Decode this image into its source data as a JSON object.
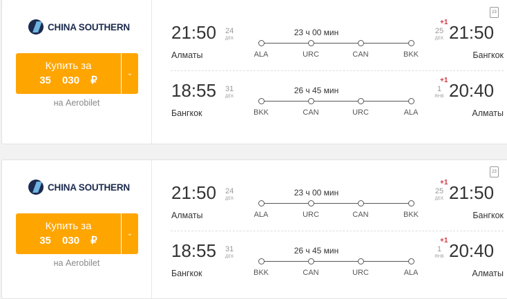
{
  "offers": [
    {
      "airline": "CHINA SOUTHERN",
      "buy_label": "Купить за",
      "price": "35 030 ₽",
      "via": "на Aerobilet",
      "baggage": "23",
      "legs": [
        {
          "dep_time": "21:50",
          "dep_day": "24",
          "dep_month": "ДЕК",
          "dep_city": "Алматы",
          "duration": "23 ч 00 мин",
          "stops": [
            "ALA",
            "URC",
            "CAN",
            "BKK"
          ],
          "arr_plus": "+1",
          "arr_day": "25",
          "arr_month": "ДЕК",
          "arr_time": "21:50",
          "arr_city": "Бангкок"
        },
        {
          "dep_time": "18:55",
          "dep_day": "31",
          "dep_month": "ДЕК",
          "dep_city": "Бангкок",
          "duration": "26 ч 45 мин",
          "stops": [
            "BKK",
            "CAN",
            "URC",
            "ALA"
          ],
          "arr_plus": "+1",
          "arr_day": "1",
          "arr_month": "ЯНВ",
          "arr_time": "20:40",
          "arr_city": "Алматы"
        }
      ]
    },
    {
      "airline": "CHINA SOUTHERN",
      "buy_label": "Купить за",
      "price": "35 030 ₽",
      "via": "на Aerobilet",
      "baggage": "23",
      "legs": [
        {
          "dep_time": "21:50",
          "dep_day": "24",
          "dep_month": "ДЕК",
          "dep_city": "Алматы",
          "duration": "23 ч 00 мин",
          "stops": [
            "ALA",
            "URC",
            "CAN",
            "BKK"
          ],
          "arr_plus": "+1",
          "arr_day": "25",
          "arr_month": "ДЕК",
          "arr_time": "21:50",
          "arr_city": "Бангкок"
        },
        {
          "dep_time": "18:55",
          "dep_day": "31",
          "dep_month": "ДЕК",
          "dep_city": "Бангкок",
          "duration": "26 ч 45 мин",
          "stops": [
            "BKK",
            "CAN",
            "URC",
            "ALA"
          ],
          "arr_plus": "+1",
          "arr_day": "1",
          "arr_month": "ЯНВ",
          "arr_time": "20:40",
          "arr_city": "Алматы"
        }
      ]
    }
  ]
}
